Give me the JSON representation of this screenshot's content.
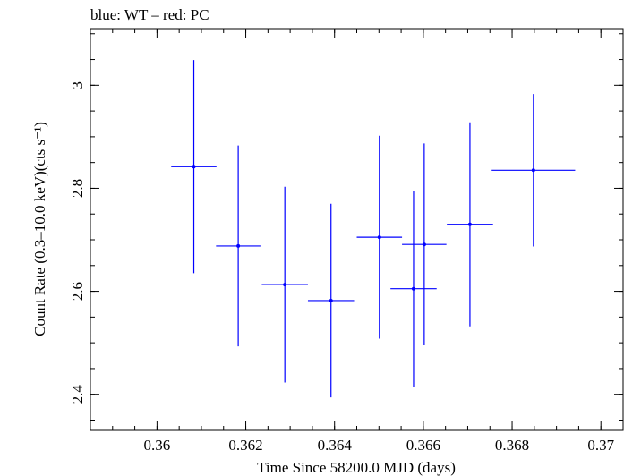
{
  "chart_data": {
    "type": "scatter",
    "title": "blue: WT – red: PC",
    "xlabel": "Time Since 58200.0 MJD (days)",
    "ylabel": "Count Rate (0.3–10.0 keV)(cts s⁻¹)",
    "xlim": [
      0.3585,
      0.3705
    ],
    "ylim": [
      2.33,
      3.11
    ],
    "x_ticks": [
      0.36,
      0.362,
      0.364,
      0.366,
      0.368,
      0.37
    ],
    "x_tick_labels": [
      "0.36",
      "0.362",
      "0.364",
      "0.366",
      "0.368",
      "0.37"
    ],
    "y_ticks": [
      2.4,
      2.6,
      2.8,
      3.0
    ],
    "y_tick_labels": [
      "2.4",
      "2.6",
      "2.8",
      "3"
    ],
    "grid": false,
    "series": [
      {
        "color": "#0000ff",
        "points": [
          {
            "x": 0.36578,
            "xerr": 0.00052,
            "y": 2.605,
            "yerr": 0.19
          },
          {
            "x": 0.36083,
            "xerr": 0.00051,
            "y": 2.842,
            "yerr": 0.207
          },
          {
            "x": 0.36183,
            "xerr": 0.0005,
            "y": 2.688,
            "yerr": 0.195
          },
          {
            "x": 0.36288,
            "xerr": 0.00052,
            "y": 2.613,
            "yerr": 0.19
          },
          {
            "x": 0.36392,
            "xerr": 0.00052,
            "y": 2.582,
            "yerr": 0.188
          },
          {
            "x": 0.36501,
            "xerr": 0.00051,
            "y": 2.705,
            "yerr": 0.197
          },
          {
            "x": 0.36602,
            "xerr": 0.0005,
            "y": 2.691,
            "yerr": 0.196
          },
          {
            "x": 0.36705,
            "xerr": 0.00052,
            "y": 2.73,
            "yerr": 0.198
          },
          {
            "x": 0.36848,
            "xerr": 0.00094,
            "y": 2.835,
            "yerr": 0.148
          }
        ]
      }
    ]
  }
}
